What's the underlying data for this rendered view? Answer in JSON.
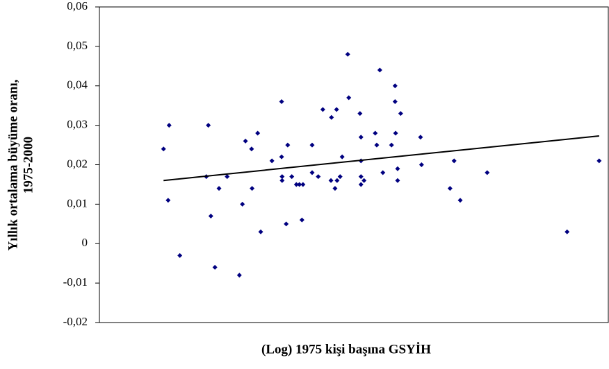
{
  "chart_data": {
    "type": "scatter",
    "xlabel": "(Log) 1975 kişi başına GSYİH",
    "ylabel": [
      "Yıllık ortalama büyüme oranı,",
      "1975-2000"
    ],
    "xlim": [
      0,
      100
    ],
    "ylim": [
      -0.02,
      0.06
    ],
    "yticks": [
      {
        "value": -0.02,
        "label": "-0,02"
      },
      {
        "value": -0.01,
        "label": "-0,01"
      },
      0,
      {
        "value": 0.01,
        "label": "0,01"
      },
      {
        "value": 0.02,
        "label": "0,02"
      },
      {
        "value": 0.03,
        "label": "0,03"
      },
      {
        "value": 0.04,
        "label": "0,04"
      },
      {
        "value": 0.05,
        "label": "0,05"
      },
      {
        "value": 0.06,
        "label": "0,06"
      }
    ],
    "series": [
      {
        "color": "#000080",
        "x": [
          12.6,
          13.7,
          13.5,
          15.8,
          21.0,
          21.4,
          21.9,
          22.7,
          23.5,
          25.1,
          27.5,
          28.1,
          28.7,
          29.9,
          30.0,
          31.1,
          31.7,
          33.9,
          35.8,
          35.8,
          35.9,
          35.9,
          36.7,
          37.0,
          37.8,
          38.7,
          39.3,
          39.8,
          40.0,
          41.8,
          41.8,
          43.0,
          43.9,
          45.5,
          45.6,
          46.3,
          46.6,
          46.7,
          47.3,
          47.7,
          48.8,
          49.0,
          51.2,
          51.4,
          51.4,
          51.4,
          51.4,
          52.0,
          54.2,
          54.5,
          55.1,
          55.7,
          57.4,
          58.1,
          58.1,
          58.2,
          58.6,
          58.6,
          59.2,
          63.1,
          63.3,
          68.9,
          69.7,
          70.9,
          76.2,
          91.9,
          98.2
        ],
        "values": [
          0.024,
          0.03,
          0.011,
          -0.003,
          0.017,
          0.03,
          0.007,
          -0.006,
          0.014,
          0.017,
          -0.008,
          0.01,
          0.026,
          0.024,
          0.014,
          0.028,
          0.003,
          0.021,
          0.036,
          0.022,
          0.017,
          0.016,
          0.005,
          0.025,
          0.017,
          0.015,
          0.015,
          0.006,
          0.015,
          0.025,
          0.018,
          0.017,
          0.034,
          0.016,
          0.032,
          0.014,
          0.034,
          0.016,
          0.017,
          0.022,
          0.048,
          0.037,
          0.033,
          0.027,
          0.021,
          0.017,
          0.015,
          0.016,
          0.028,
          0.025,
          0.044,
          0.018,
          0.025,
          0.04,
          0.036,
          0.028,
          0.019,
          0.016,
          0.033,
          0.027,
          0.02,
          0.014,
          0.021,
          0.011,
          0.018,
          0.003,
          0.021
        ]
      }
    ],
    "trendline": {
      "color": "#000000",
      "x": [
        12.6,
        98.2
      ],
      "values": [
        0.016,
        0.0273
      ]
    }
  }
}
